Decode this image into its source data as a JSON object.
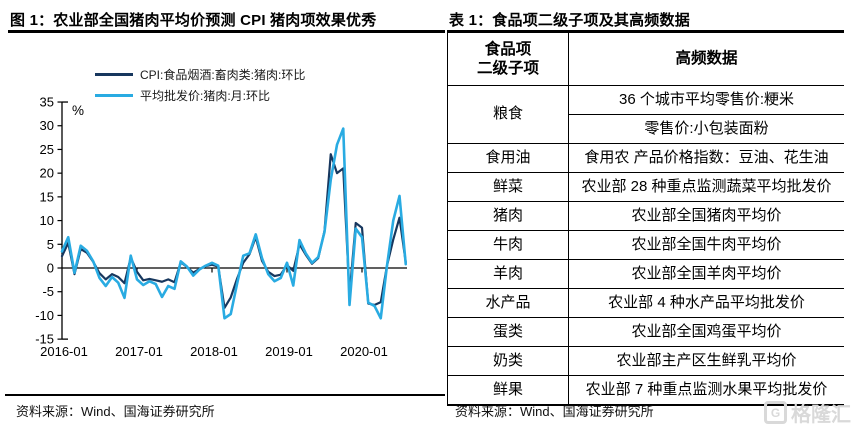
{
  "figure": {
    "title": "图 1：农业部全国猪肉平均价预测 CPI 猪肉项效果优秀",
    "source": "资料来源：Wind、国海证券研究所"
  },
  "chart_data": {
    "type": "line",
    "unit": "%",
    "ylim": [
      -15,
      35
    ],
    "ytick_step": 5,
    "grid": false,
    "legend_position": "top-left",
    "xticks": [
      "2016-01",
      "2017-01",
      "2018-01",
      "2019-01",
      "2020-01"
    ],
    "x": [
      "2016-01",
      "2016-02",
      "2016-03",
      "2016-04",
      "2016-05",
      "2016-06",
      "2016-07",
      "2016-08",
      "2016-09",
      "2016-10",
      "2016-11",
      "2016-12",
      "2017-01",
      "2017-02",
      "2017-03",
      "2017-04",
      "2017-05",
      "2017-06",
      "2017-07",
      "2017-08",
      "2017-09",
      "2017-10",
      "2017-11",
      "2017-12",
      "2018-01",
      "2018-02",
      "2018-03",
      "2018-04",
      "2018-05",
      "2018-06",
      "2018-07",
      "2018-08",
      "2018-09",
      "2018-10",
      "2018-11",
      "2018-12",
      "2019-01",
      "2019-02",
      "2019-03",
      "2019-04",
      "2019-05",
      "2019-06",
      "2019-07",
      "2019-08",
      "2019-09",
      "2019-10",
      "2019-11",
      "2019-12",
      "2020-01",
      "2020-02",
      "2020-03",
      "2020-04",
      "2020-05",
      "2020-06",
      "2020-07",
      "2020-08"
    ],
    "series": [
      {
        "name": "CPI:食品烟酒:畜肉类:猪肉:环比",
        "color": "#17375e",
        "values": [
          2.5,
          5.3,
          -1.3,
          4.0,
          3.2,
          1.3,
          -1.1,
          -2.4,
          -1.3,
          -1.9,
          -3.2,
          2.2,
          -0.8,
          -2.6,
          -2.3,
          -2.6,
          -2.9,
          -2.4,
          -3.0,
          1.2,
          0.2,
          -1.0,
          -0.2,
          0.4,
          0.7,
          0.3,
          -8.4,
          -6.2,
          -2.3,
          1.1,
          2.9,
          6.5,
          1.5,
          -0.8,
          -1.7,
          -1.4,
          0.6,
          -0.6,
          5.0,
          2.8,
          0.9,
          2.1,
          7.8,
          24.0,
          20.0,
          21.0,
          -5.7,
          9.5,
          8.5,
          -7.5,
          -7.8,
          -7.2,
          0.5,
          6.0,
          10.6,
          1.2
        ]
      },
      {
        "name": "平均批发价:猪肉:月:环比",
        "color": "#29abe2",
        "values": [
          3.5,
          6.5,
          -1.0,
          4.7,
          3.6,
          1.4,
          -2.1,
          -3.8,
          -1.9,
          -3.1,
          -6.3,
          2.6,
          -2.4,
          -3.6,
          -2.8,
          -3.4,
          -6.1,
          -3.8,
          -4.4,
          1.4,
          0.3,
          -1.6,
          -0.3,
          0.5,
          1.1,
          0.5,
          -10.6,
          -9.7,
          -3.4,
          2.6,
          3.1,
          7.1,
          2.1,
          -1.3,
          -2.8,
          -2.1,
          1.1,
          -3.7,
          5.9,
          3.1,
          1.1,
          2.3,
          7.6,
          18.6,
          26.0,
          29.4,
          -7.8,
          8.3,
          6.5,
          -7.3,
          -8.0,
          -10.6,
          0.5,
          10.0,
          15.2,
          0.8
        ]
      }
    ]
  },
  "table": {
    "title": "表 1：食品项二级子项及其高频数据",
    "col_headers": [
      "食品项\n二级子项",
      "高频数据"
    ],
    "rows": [
      {
        "item": "粮食",
        "data": [
          "36 个城市平均零售价:粳米",
          "零售价:小包装面粉"
        ]
      },
      {
        "item": "食用油",
        "data": [
          "食用农 产品价格指数：豆油、花生油"
        ]
      },
      {
        "item": "鲜菜",
        "data": [
          "农业部 28 种重点监测蔬菜平均批发价"
        ]
      },
      {
        "item": "猪肉",
        "data": [
          "农业部全国猪肉平均价"
        ]
      },
      {
        "item": "牛肉",
        "data": [
          "农业部全国牛肉平均价"
        ]
      },
      {
        "item": "羊肉",
        "data": [
          "农业部全国羊肉平均价"
        ]
      },
      {
        "item": "水产品",
        "data": [
          "农业部 4 种水产品平均批发价"
        ]
      },
      {
        "item": "蛋类",
        "data": [
          "农业部全国鸡蛋平均价"
        ]
      },
      {
        "item": "奶类",
        "data": [
          "农业部主产区生鲜乳平均价"
        ]
      },
      {
        "item": "鲜果",
        "data": [
          "农业部 7 种重点监测水果平均批发价"
        ]
      }
    ],
    "source": "资料来源：Wind、国海证券研究所"
  },
  "watermark": {
    "logo": "G",
    "text": "格隆汇"
  }
}
